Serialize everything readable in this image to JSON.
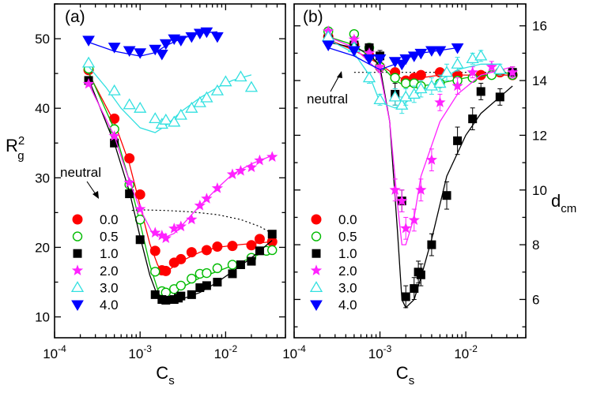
{
  "colors": {
    "0.0": "#ff0000",
    "0.5": "#00bb00",
    "1.0": "#000000",
    "2.0": "#ff22ff",
    "3.0": "#33e0e0",
    "4.0": "#0000ff"
  },
  "chart_data": [
    {
      "type": "scatter",
      "panel": "(a)",
      "xlabel": "C",
      "xlabel_sub": "s",
      "ylabel": "R",
      "ylabel_sup": "2",
      "ylabel_sub": "g",
      "xscale": "log",
      "xlim": [
        0.0001,
        0.05
      ],
      "ylim": [
        7,
        55
      ],
      "x_ticks": [
        0.0001,
        0.001,
        0.01
      ],
      "x_tick_labels": [
        {
          "base": "10",
          "exp": "-4"
        },
        {
          "base": "10",
          "exp": "-3"
        },
        {
          "base": "10",
          "exp": "-2"
        }
      ],
      "y_ticks": [
        10,
        20,
        30,
        40,
        50
      ],
      "y_tick_labels": [
        "10",
        "20",
        "30",
        "40",
        "50"
      ],
      "legend": {
        "position": "lower-left",
        "entries": [
          "0.0",
          "0.5",
          "1.0",
          "2.0",
          "3.0",
          "4.0"
        ]
      },
      "annotation": {
        "text": "neutral",
        "curve": [
          [
            0.0008,
            25.3
          ],
          [
            0.001,
            25.4
          ],
          [
            0.002,
            25.3
          ],
          [
            0.004,
            25.1
          ],
          [
            0.008,
            24.7
          ],
          [
            0.015,
            24.0
          ],
          [
            0.025,
            23.0
          ],
          [
            0.035,
            22.0
          ]
        ]
      },
      "series": [
        {
          "name": "0.0",
          "marker": "circle-filled",
          "x": [
            0.00025,
            0.0005,
            0.00075,
            0.001,
            0.0015,
            0.0018,
            0.002,
            0.0025,
            0.003,
            0.004,
            0.006,
            0.008,
            0.012,
            0.02,
            0.025,
            0.035
          ],
          "y": [
            45.5,
            38.5,
            32.8,
            27.6,
            19.5,
            16.7,
            16.6,
            17.8,
            18.3,
            19.3,
            19.6,
            20.1,
            20.2,
            20.3,
            21.2,
            20.8
          ],
          "fit_x": [
            0.00025,
            0.0005,
            0.00075,
            0.001,
            0.0013,
            0.0016,
            0.0018,
            0.0022,
            0.003,
            0.005,
            0.008,
            0.015,
            0.035
          ],
          "fit_y": [
            45.0,
            38.0,
            32.0,
            26.0,
            20.5,
            17.5,
            16.5,
            16.8,
            18.0,
            19.3,
            20.0,
            20.4,
            20.8
          ]
        },
        {
          "name": "0.5",
          "marker": "circle-open",
          "x": [
            0.00025,
            0.0005,
            0.00075,
            0.001,
            0.0015,
            0.0018,
            0.002,
            0.0025,
            0.003,
            0.004,
            0.005,
            0.006,
            0.008,
            0.012,
            0.02,
            0.03,
            0.035
          ],
          "y": [
            45.7,
            37.0,
            29.0,
            24.0,
            16.5,
            13.7,
            13.5,
            14.0,
            14.5,
            15.5,
            16.2,
            16.3,
            17.0,
            17.5,
            18.5,
            19.5,
            19.6
          ],
          "fit_x": [
            0.00025,
            0.0005,
            0.00075,
            0.001,
            0.0013,
            0.0016,
            0.002,
            0.003,
            0.005,
            0.01,
            0.02,
            0.035
          ],
          "fit_y": [
            45.2,
            37.0,
            29.5,
            23.5,
            17.5,
            14.0,
            13.3,
            14.2,
            15.6,
            17.0,
            18.5,
            19.8
          ]
        },
        {
          "name": "1.0",
          "marker": "square-filled",
          "x": [
            0.00025,
            0.0005,
            0.00075,
            0.001,
            0.0015,
            0.0018,
            0.002,
            0.0025,
            0.0028,
            0.003,
            0.004,
            0.005,
            0.006,
            0.008,
            0.012,
            0.015,
            0.02,
            0.025,
            0.035
          ],
          "y": [
            44.0,
            35.0,
            27.7,
            21.1,
            13.2,
            12.5,
            12.4,
            12.5,
            12.7,
            13.0,
            13.2,
            14.2,
            14.5,
            15.0,
            16.2,
            17.5,
            18.0,
            19.5,
            21.9
          ],
          "fit_x": [
            0.00025,
            0.0005,
            0.00075,
            0.001,
            0.0013,
            0.0016,
            0.002,
            0.003,
            0.005,
            0.008,
            0.012,
            0.02,
            0.035
          ],
          "fit_y": [
            44.2,
            35.0,
            28.0,
            21.5,
            16.0,
            13.0,
            12.2,
            12.5,
            13.5,
            15.0,
            16.5,
            18.5,
            21.0
          ]
        },
        {
          "name": "2.0",
          "marker": "star-filled",
          "x": [
            0.00025,
            0.0005,
            0.00075,
            0.001,
            0.0015,
            0.0018,
            0.002,
            0.0025,
            0.003,
            0.004,
            0.005,
            0.006,
            0.008,
            0.012,
            0.015,
            0.02,
            0.025,
            0.035
          ],
          "y": [
            43.5,
            36.0,
            29.3,
            25.5,
            22.1,
            21.7,
            21.3,
            22.7,
            23.0,
            24.0,
            26.0,
            27.0,
            28.5,
            30.5,
            31.0,
            31.5,
            32.5,
            33.0
          ],
          "fit_x": [
            0.00025,
            0.0005,
            0.00075,
            0.001,
            0.0014,
            0.002,
            0.0025,
            0.003,
            0.005,
            0.008,
            0.012,
            0.02,
            0.035
          ],
          "fit_y": [
            43.5,
            36.0,
            29.5,
            25.5,
            22.0,
            21.5,
            22.0,
            23.0,
            26.0,
            28.5,
            30.5,
            32.0,
            33.2
          ]
        },
        {
          "name": "3.0",
          "marker": "triangle-up-open",
          "x": [
            0.00025,
            0.0005,
            0.00075,
            0.001,
            0.0015,
            0.0018,
            0.002,
            0.0025,
            0.003,
            0.004,
            0.005,
            0.006,
            0.008,
            0.01,
            0.015,
            0.02
          ],
          "y": [
            46.5,
            42.5,
            40.5,
            40.0,
            38.5,
            37.7,
            38.3,
            38.0,
            39.0,
            40.0,
            40.8,
            41.5,
            42.5,
            43.8,
            44.5,
            43.0
          ],
          "fit_x": [
            0.00025,
            0.0004,
            0.0006,
            0.001,
            0.0015,
            0.002,
            0.003,
            0.005,
            0.008,
            0.012,
            0.02
          ],
          "fit_y": [
            46.0,
            43.0,
            40.0,
            37.2,
            36.5,
            37.5,
            39.5,
            41.5,
            43.0,
            44.0,
            44.8
          ]
        },
        {
          "name": "4.0",
          "marker": "triangle-down-filled",
          "x": [
            0.00025,
            0.0005,
            0.00075,
            0.001,
            0.0015,
            0.0018,
            0.002,
            0.0025,
            0.003,
            0.004,
            0.005,
            0.006,
            0.008
          ],
          "y": [
            49.8,
            48.8,
            48.3,
            48.0,
            48.5,
            47.8,
            49.3,
            50.0,
            49.8,
            50.3,
            50.8,
            51.0,
            50.3
          ],
          "fit_x": [
            0.00025,
            0.0005,
            0.001,
            0.0015,
            0.002,
            0.003,
            0.005,
            0.008
          ],
          "fit_y": [
            49.5,
            48.2,
            47.5,
            48.0,
            49.0,
            50.0,
            50.8,
            51.0
          ]
        }
      ]
    },
    {
      "type": "scatter",
      "panel": "(b)",
      "xlabel": "C",
      "xlabel_sub": "s",
      "ylabel": "d",
      "ylabel_sub": "cm",
      "xscale": "log",
      "xlim": [
        0.0001,
        0.05
      ],
      "ylim": [
        4.6,
        16.8
      ],
      "x_ticks": [
        0.0001,
        0.001,
        0.01
      ],
      "x_tick_labels": [
        {
          "base": "10",
          "exp": "-4"
        },
        {
          "base": "10",
          "exp": "-3"
        },
        {
          "base": "10",
          "exp": "-2"
        }
      ],
      "y_ticks": [
        6,
        8,
        10,
        12,
        14,
        16
      ],
      "y_tick_labels": [
        "6",
        "8",
        "10",
        "12",
        "14",
        "16"
      ],
      "legend": {
        "position": "lower-left",
        "entries": [
          "0.0",
          "0.5",
          "1.0",
          "2.0",
          "3.0",
          "4.0"
        ]
      },
      "annotation": {
        "text": "neutral",
        "curve": [
          [
            0.0005,
            14.3
          ],
          [
            0.001,
            14.3
          ],
          [
            0.003,
            14.3
          ],
          [
            0.01,
            14.3
          ],
          [
            0.035,
            14.3
          ]
        ]
      },
      "series": [
        {
          "name": "0.0",
          "marker": "circle-filled",
          "x": [
            0.00025,
            0.0005,
            0.00075,
            0.001,
            0.0015,
            0.002,
            0.0025,
            0.003,
            0.005,
            0.008,
            0.015,
            0.025,
            0.035
          ],
          "y": [
            15.6,
            15.3,
            14.9,
            14.5,
            14.3,
            14.0,
            14.1,
            14.2,
            14.3,
            14.2,
            14.2,
            14.3,
            14.2
          ],
          "fit_x": [
            0.00025,
            0.0005,
            0.001,
            0.0015,
            0.002,
            0.003,
            0.005,
            0.01,
            0.035
          ],
          "fit_y": [
            15.5,
            15.1,
            14.6,
            14.2,
            14.0,
            14.1,
            14.2,
            14.2,
            14.2
          ]
        },
        {
          "name": "0.5",
          "marker": "circle-open",
          "x": [
            0.00025,
            0.0005,
            0.00075,
            0.001,
            0.0015,
            0.002,
            0.0025,
            0.003,
            0.005,
            0.008,
            0.012,
            0.02,
            0.035
          ],
          "y": [
            15.8,
            15.7,
            15.2,
            14.5,
            14.1,
            13.9,
            13.9,
            13.8,
            13.9,
            14.0,
            14.1,
            14.2,
            14.2
          ],
          "fit_x": [
            0.00025,
            0.0005,
            0.001,
            0.0015,
            0.002,
            0.003,
            0.005,
            0.01,
            0.035
          ],
          "fit_y": [
            15.6,
            15.3,
            14.6,
            14.0,
            13.8,
            13.8,
            13.9,
            14.1,
            14.3
          ]
        },
        {
          "name": "1.0",
          "marker": "square-filled",
          "x": [
            0.00025,
            0.0005,
            0.00075,
            0.001,
            0.0015,
            0.0018,
            0.002,
            0.0025,
            0.0028,
            0.003,
            0.004,
            0.006,
            0.008,
            0.012,
            0.015,
            0.025,
            0.035
          ],
          "y": [
            15.5,
            15.3,
            15.2,
            14.9,
            13.5,
            9.6,
            6.1,
            6.4,
            7.0,
            6.9,
            8.0,
            9.8,
            11.8,
            12.6,
            13.6,
            13.4,
            14.3
          ],
          "err": [
            0.1,
            0.1,
            0.15,
            0.2,
            0.4,
            0.4,
            0.4,
            0.4,
            0.4,
            0.4,
            0.4,
            0.5,
            0.5,
            0.4,
            0.3,
            0.3,
            0.2
          ],
          "fit_x": [
            0.00025,
            0.0005,
            0.00075,
            0.001,
            0.0013,
            0.0016,
            0.0018,
            0.002,
            0.0025,
            0.003,
            0.004,
            0.006,
            0.01,
            0.015,
            0.035
          ],
          "fit_y": [
            15.4,
            15.2,
            15.0,
            14.5,
            12.5,
            8.5,
            6.0,
            5.7,
            6.0,
            6.8,
            8.2,
            10.5,
            12.0,
            12.8,
            13.8
          ]
        },
        {
          "name": "2.0",
          "marker": "star-filled",
          "x": [
            0.00025,
            0.0005,
            0.00075,
            0.001,
            0.0015,
            0.0018,
            0.002,
            0.0025,
            0.003,
            0.004,
            0.005,
            0.008,
            0.012,
            0.02,
            0.035
          ],
          "y": [
            15.8,
            15.5,
            15.0,
            14.5,
            10.0,
            9.6,
            8.6,
            8.9,
            10.0,
            11.1,
            13.2,
            13.8,
            14.3,
            14.5,
            14.3
          ],
          "err": [
            0.1,
            0.1,
            0.1,
            0.2,
            0.4,
            0.4,
            0.4,
            0.4,
            0.4,
            0.4,
            0.3,
            0.3,
            0.2,
            0.2,
            0.2
          ],
          "fit_x": [
            0.00025,
            0.0005,
            0.001,
            0.0013,
            0.0016,
            0.0018,
            0.002,
            0.0025,
            0.003,
            0.005,
            0.008,
            0.015,
            0.035
          ],
          "fit_y": [
            15.6,
            15.2,
            14.3,
            12.5,
            9.5,
            8.0,
            8.0,
            9.0,
            10.5,
            12.5,
            13.5,
            14.2,
            14.5
          ]
        },
        {
          "name": "3.0",
          "marker": "triangle-up-open",
          "x": [
            0.00025,
            0.0005,
            0.00075,
            0.001,
            0.0015,
            0.0018,
            0.002,
            0.0025,
            0.003,
            0.004,
            0.005,
            0.006,
            0.008,
            0.012,
            0.015,
            0.025
          ],
          "y": [
            15.6,
            15.2,
            14.1,
            13.3,
            13.4,
            13.1,
            13.4,
            13.5,
            13.7,
            13.8,
            13.9,
            14.3,
            14.6,
            14.8,
            14.9,
            14.4
          ],
          "err": [
            0.1,
            0.15,
            0.2,
            0.2,
            0.3,
            0.3,
            0.3,
            0.3,
            0.3,
            0.3,
            0.3,
            0.3,
            0.25,
            0.2,
            0.2,
            0.2
          ],
          "fit_x": [
            0.00025,
            0.0005,
            0.00075,
            0.001,
            0.0015,
            0.002,
            0.003,
            0.005,
            0.008,
            0.015,
            0.025
          ],
          "fit_y": [
            15.5,
            15.0,
            14.2,
            13.2,
            13.0,
            13.2,
            13.6,
            14.0,
            14.4,
            14.6,
            14.6
          ]
        },
        {
          "name": "4.0",
          "marker": "triangle-down-filled",
          "x": [
            0.00025,
            0.0005,
            0.00075,
            0.001,
            0.0015,
            0.0018,
            0.002,
            0.0025,
            0.003,
            0.004,
            0.005,
            0.008
          ],
          "y": [
            15.3,
            15.1,
            14.8,
            14.8,
            14.7,
            14.6,
            14.8,
            14.9,
            15.0,
            15.1,
            15.1,
            15.2
          ],
          "fit_x": [
            0.00025,
            0.0005,
            0.00075,
            0.001,
            0.0015,
            0.002,
            0.003,
            0.005,
            0.008
          ],
          "fit_y": [
            15.2,
            14.9,
            14.6,
            14.4,
            14.6,
            14.8,
            15.0,
            15.1,
            15.2
          ]
        }
      ]
    }
  ]
}
